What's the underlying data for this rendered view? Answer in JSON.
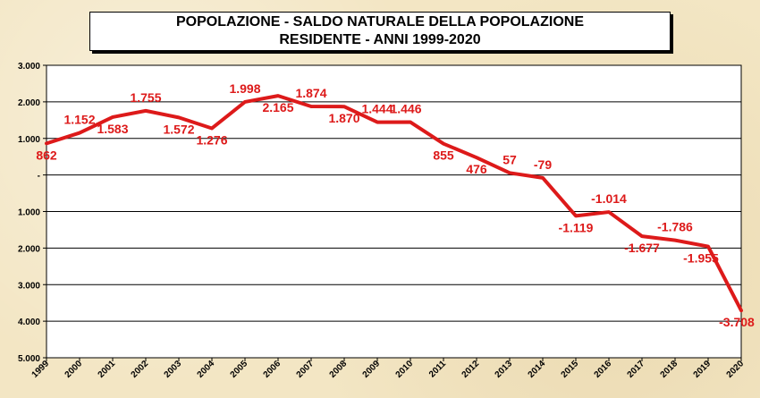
{
  "chart_data": {
    "type": "line",
    "title": "POPOLAZIONE - SALDO NATURALE DELLA POPOLAZIONE RESIDENTE - ANNI 1999-2020",
    "xlabel": "",
    "ylabel": "",
    "x": [
      "1999",
      "2000",
      "2001",
      "2002",
      "2003",
      "2004",
      "2005",
      "2006",
      "2007",
      "2008",
      "2009",
      "2010",
      "2011",
      "2012",
      "2013",
      "2014",
      "2015",
      "2016",
      "2017",
      "2018",
      "2019",
      "2020"
    ],
    "series": [
      {
        "name": "Saldo naturale",
        "color": "#dd1a1a",
        "values": [
          862,
          1152,
          1583,
          1755,
          1572,
          1276,
          1998,
          2165,
          1874,
          1870,
          1444,
          1446,
          855,
          476,
          57,
          -79,
          -1119,
          -1014,
          -1677,
          -1786,
          -1955,
          -3708
        ],
        "labels": [
          "862",
          "1.152",
          "1.583",
          "1.755",
          "1.572",
          "1.276",
          "1.998",
          "2.165",
          "1.874",
          "1.870",
          "1.444",
          "1.446",
          "855",
          "476",
          "57",
          "-79",
          "-1.119",
          "-1.014",
          "-1.677",
          "-1.786",
          "-1.955",
          "-3.708"
        ]
      }
    ],
    "ylim": [
      -5000,
      3000
    ],
    "yticks": [
      3000,
      2000,
      1000,
      0,
      -1000,
      -2000,
      -3000,
      -4000,
      -5000
    ],
    "ytick_labels": [
      "3.000",
      "2.000",
      "1.000",
      "-",
      "1.000",
      "2.000",
      "3.000",
      "4.000",
      "5.000"
    ],
    "grid": true,
    "legend": "none"
  }
}
